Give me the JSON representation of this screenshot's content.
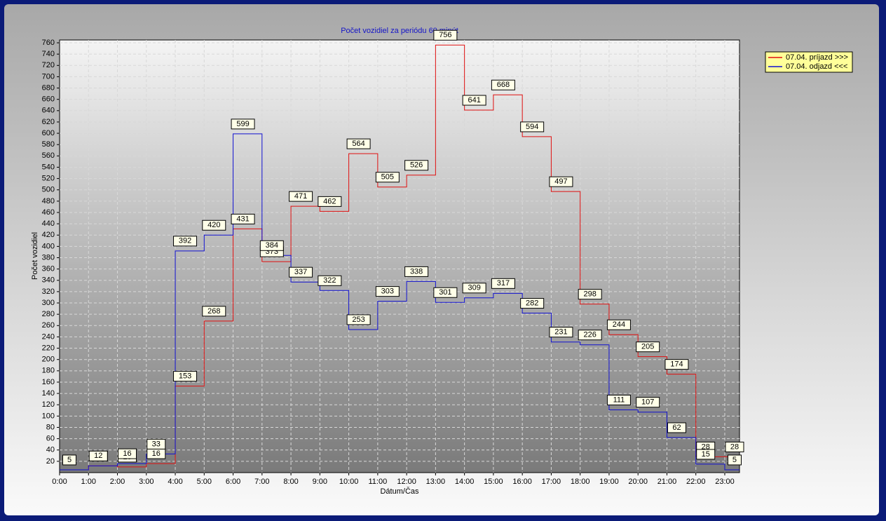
{
  "chart_data": {
    "type": "step",
    "title": "Počet vozidiel za periódu 60 minút",
    "x_label": "Dátum/Čas",
    "y_label": "Počet vozidiel",
    "categories": [
      "0:00",
      "1:00",
      "2:00",
      "3:00",
      "4:00",
      "5:00",
      "6:00",
      "7:00",
      "8:00",
      "9:00",
      "10:00",
      "11:00",
      "12:00",
      "13:00",
      "14:00",
      "15:00",
      "16:00",
      "17:00",
      "18:00",
      "19:00",
      "20:00",
      "21:00",
      "22:00",
      "23:00"
    ],
    "series": [
      {
        "name": "07.04.  príjazd >>>",
        "color": "#e01010",
        "values": [
          5,
          12,
          10,
          16,
          153,
          268,
          431,
          373,
          471,
          462,
          564,
          505,
          526,
          756,
          641,
          668,
          594,
          497,
          298,
          244,
          205,
          174,
          28,
          28
        ]
      },
      {
        "name": "07.04.  odjazd <<<",
        "color": "#1010d0",
        "values": [
          5,
          12,
          16,
          33,
          392,
          420,
          599,
          384,
          337,
          322,
          253,
          303,
          338,
          301,
          309,
          317,
          282,
          231,
          226,
          111,
          107,
          62,
          15,
          5
        ]
      }
    ],
    "ylim": [
      0,
      765
    ],
    "yticks": [
      20,
      40,
      60,
      80,
      100,
      120,
      140,
      160,
      180,
      200,
      220,
      240,
      260,
      280,
      300,
      320,
      340,
      360,
      380,
      400,
      420,
      440,
      460,
      480,
      500,
      520,
      540,
      560,
      580,
      600,
      620,
      640,
      660,
      680,
      700,
      720,
      740,
      760
    ],
    "grid": true,
    "legend": "top-right"
  }
}
